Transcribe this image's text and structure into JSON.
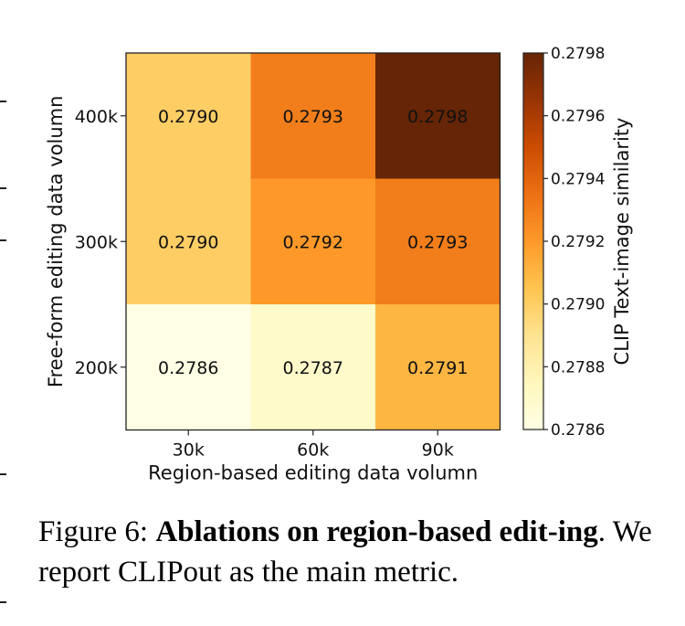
{
  "chart_data": {
    "type": "heatmap",
    "title": "",
    "xlabel": "Region-based editing data volumn",
    "ylabel": "Free-form editing data volumn",
    "x_categories": [
      "30k",
      "60k",
      "90k"
    ],
    "y_categories": [
      "400k",
      "300k",
      "200k"
    ],
    "values": [
      [
        0.279,
        0.2793,
        0.2798
      ],
      [
        0.279,
        0.2792,
        0.2793
      ],
      [
        0.2786,
        0.2787,
        0.2791
      ]
    ],
    "cell_labels": [
      [
        "0.2790",
        "0.2793",
        "0.2798"
      ],
      [
        "0.2790",
        "0.2792",
        "0.2793"
      ],
      [
        "0.2786",
        "0.2787",
        "0.2791"
      ]
    ],
    "colormap": "YlOrBr",
    "colorbar": {
      "label": "CLIP Text-image similarity",
      "range": [
        0.2786,
        0.2798
      ],
      "ticks": [
        "0.2786",
        "0.2788",
        "0.2790",
        "0.2792",
        "0.2794",
        "0.2796",
        "0.2798"
      ],
      "stops": [
        "#ffffe5",
        "#fff7bc",
        "#fee391",
        "#fec44f",
        "#fe9929",
        "#ec7014",
        "#cc4c02",
        "#993404",
        "#662506"
      ]
    }
  },
  "caption": {
    "prefix": "Figure 6: ",
    "bold": "Ablations on region-based edit-ing",
    "rest": ". We report CLIPout as the main metric."
  }
}
